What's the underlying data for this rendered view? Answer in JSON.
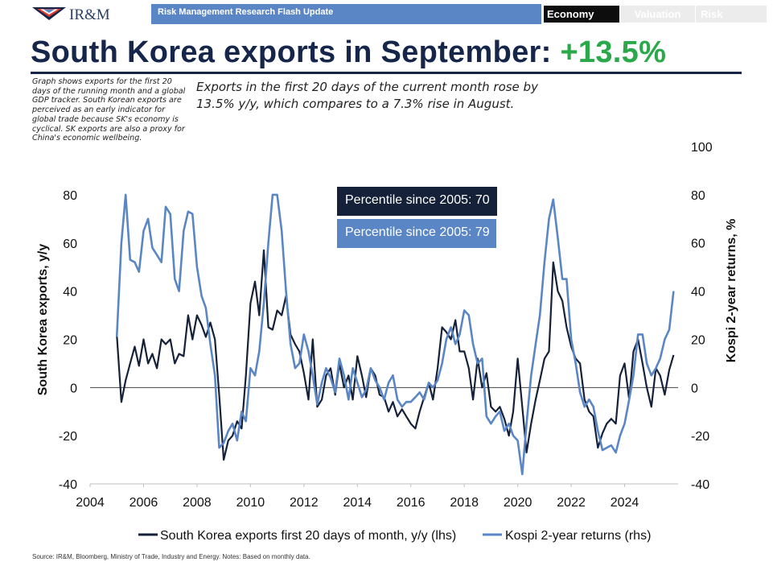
{
  "header": {
    "logo_text": "IR&M",
    "bar_title": "Risk Management Research Flash Update",
    "tabs": [
      {
        "label": "Economy",
        "active": true
      },
      {
        "label": "Valuation",
        "active": false
      },
      {
        "label": "Risk",
        "active": false
      }
    ]
  },
  "title": {
    "text": "South Korea exports in September: ",
    "value": "+13.5%",
    "value_color": "#2aa84a"
  },
  "side_note": "Graph shows exports for the first 20 days of the running month and a global GDP tracker. South Korean exports are perceived as an early indicator for global trade because SK's economy is cyclical. SK exports are also a proxy for China's economic wellbeing.",
  "callout": "Exports in the first 20 days of the current month rose by 13.5% y/y, which compares to a 7.3% rise in August.",
  "percentile_boxes": [
    {
      "text": "Percentile since 2005: 70",
      "color": "#142139"
    },
    {
      "text": "Percentile since 2005: 79",
      "color": "#5b86c6"
    }
  ],
  "source": "Source: IR&M, Bloomberg, Ministry of Trade, Industry and Energy. Notes: Based on monthly data.",
  "chart_data": {
    "type": "line",
    "title": "South Korea exports in September: +13.5%",
    "xlabel": "",
    "ylabel_left": "South Korea exports, y/y",
    "ylabel_right": "Kospi 2-year returns, %",
    "xlim": [
      2004,
      2026
    ],
    "ylim_left": [
      -40,
      80
    ],
    "ylim_right": [
      -40,
      100
    ],
    "x_ticks": [
      "2004",
      "2006",
      "2008",
      "2010",
      "2012",
      "2014",
      "2016",
      "2018",
      "2020",
      "2022",
      "2024"
    ],
    "y_ticks_left": [
      "80",
      "60",
      "40",
      "20",
      "0",
      "-20",
      "-40"
    ],
    "y_ticks_right": [
      "100",
      "80",
      "60",
      "40",
      "20",
      "0",
      "-20",
      "-40"
    ],
    "legend_position": "bottom-center",
    "series": [
      {
        "name": "South Korea exports first 20 days of month, y/y (lhs)",
        "axis": "left",
        "color": "#142139",
        "points": [
          [
            2005.0,
            22
          ],
          [
            2005.17,
            -6
          ],
          [
            2005.33,
            3
          ],
          [
            2005.5,
            10
          ],
          [
            2005.67,
            17
          ],
          [
            2005.83,
            9
          ],
          [
            2006.0,
            20
          ],
          [
            2006.17,
            10
          ],
          [
            2006.33,
            14
          ],
          [
            2006.5,
            8
          ],
          [
            2006.67,
            20
          ],
          [
            2006.83,
            18
          ],
          [
            2007.0,
            20
          ],
          [
            2007.17,
            10
          ],
          [
            2007.33,
            14
          ],
          [
            2007.5,
            13
          ],
          [
            2007.67,
            30
          ],
          [
            2007.83,
            20
          ],
          [
            2008.0,
            30
          ],
          [
            2008.17,
            26
          ],
          [
            2008.33,
            21
          ],
          [
            2008.5,
            27
          ],
          [
            2008.67,
            20
          ],
          [
            2008.83,
            -3
          ],
          [
            2009.0,
            -30
          ],
          [
            2009.17,
            -22
          ],
          [
            2009.33,
            -20
          ],
          [
            2009.5,
            -14
          ],
          [
            2009.67,
            -17
          ],
          [
            2009.83,
            5
          ],
          [
            2010.0,
            35
          ],
          [
            2010.17,
            44
          ],
          [
            2010.33,
            30
          ],
          [
            2010.5,
            57
          ],
          [
            2010.67,
            25
          ],
          [
            2010.83,
            24
          ],
          [
            2011.0,
            32
          ],
          [
            2011.17,
            30
          ],
          [
            2011.33,
            38
          ],
          [
            2011.5,
            22
          ],
          [
            2011.67,
            18
          ],
          [
            2011.83,
            15
          ],
          [
            2012.0,
            6
          ],
          [
            2012.17,
            -5
          ],
          [
            2012.33,
            20
          ],
          [
            2012.5,
            -8
          ],
          [
            2012.67,
            -5
          ],
          [
            2012.83,
            5
          ],
          [
            2013.0,
            8
          ],
          [
            2013.17,
            -3
          ],
          [
            2013.33,
            10
          ],
          [
            2013.5,
            0
          ],
          [
            2013.67,
            5
          ],
          [
            2013.83,
            -5
          ],
          [
            2014.0,
            13
          ],
          [
            2014.17,
            5
          ],
          [
            2014.33,
            -4
          ],
          [
            2014.5,
            8
          ],
          [
            2014.67,
            5
          ],
          [
            2014.83,
            -3
          ],
          [
            2015.0,
            -4
          ],
          [
            2015.17,
            -10
          ],
          [
            2015.33,
            -6
          ],
          [
            2015.5,
            -12
          ],
          [
            2015.67,
            -9
          ],
          [
            2015.83,
            -12
          ],
          [
            2016.0,
            -15
          ],
          [
            2016.17,
            -17
          ],
          [
            2016.33,
            -10
          ],
          [
            2016.5,
            -4
          ],
          [
            2016.67,
            2
          ],
          [
            2016.83,
            -5
          ],
          [
            2017.0,
            8
          ],
          [
            2017.17,
            25
          ],
          [
            2017.33,
            23
          ],
          [
            2017.5,
            20
          ],
          [
            2017.67,
            28
          ],
          [
            2017.83,
            15
          ],
          [
            2018.0,
            15
          ],
          [
            2018.17,
            8
          ],
          [
            2018.33,
            -5
          ],
          [
            2018.5,
            12
          ],
          [
            2018.67,
            0
          ],
          [
            2018.83,
            6
          ],
          [
            2019.0,
            -8
          ],
          [
            2019.17,
            -10
          ],
          [
            2019.33,
            -8
          ],
          [
            2019.5,
            -13
          ],
          [
            2019.67,
            -20
          ],
          [
            2019.83,
            -10
          ],
          [
            2020.0,
            12
          ],
          [
            2020.17,
            -8
          ],
          [
            2020.33,
            -27
          ],
          [
            2020.5,
            -15
          ],
          [
            2020.67,
            -5
          ],
          [
            2020.83,
            3
          ],
          [
            2021.0,
            12
          ],
          [
            2021.17,
            15
          ],
          [
            2021.33,
            52
          ],
          [
            2021.5,
            40
          ],
          [
            2021.67,
            36
          ],
          [
            2021.83,
            25
          ],
          [
            2022.0,
            17
          ],
          [
            2022.17,
            12
          ],
          [
            2022.33,
            10
          ],
          [
            2022.5,
            -5
          ],
          [
            2022.67,
            -10
          ],
          [
            2022.83,
            -12
          ],
          [
            2023.0,
            -25
          ],
          [
            2023.17,
            -19
          ],
          [
            2023.33,
            -15
          ],
          [
            2023.5,
            -13
          ],
          [
            2023.67,
            -15
          ],
          [
            2023.83,
            5
          ],
          [
            2024.0,
            10
          ],
          [
            2024.17,
            -5
          ],
          [
            2024.33,
            15
          ],
          [
            2024.5,
            20
          ],
          [
            2024.67,
            10
          ],
          [
            2024.83,
            0
          ],
          [
            2025.0,
            -8
          ],
          [
            2025.17,
            8
          ],
          [
            2025.33,
            5
          ],
          [
            2025.5,
            -3
          ],
          [
            2025.67,
            7.3
          ],
          [
            2025.83,
            13.5
          ]
        ]
      },
      {
        "name": "Kospi 2-year returns (rhs)",
        "axis": "right",
        "color": "#5b86c6",
        "points": [
          [
            2005.0,
            21
          ],
          [
            2005.17,
            60
          ],
          [
            2005.33,
            80
          ],
          [
            2005.5,
            53
          ],
          [
            2005.67,
            52
          ],
          [
            2005.83,
            48
          ],
          [
            2006.0,
            65
          ],
          [
            2006.17,
            70
          ],
          [
            2006.33,
            58
          ],
          [
            2006.5,
            55
          ],
          [
            2006.67,
            52
          ],
          [
            2006.83,
            75
          ],
          [
            2007.0,
            72
          ],
          [
            2007.17,
            45
          ],
          [
            2007.33,
            40
          ],
          [
            2007.5,
            65
          ],
          [
            2007.67,
            73
          ],
          [
            2007.83,
            72
          ],
          [
            2008.0,
            50
          ],
          [
            2008.17,
            38
          ],
          [
            2008.33,
            33
          ],
          [
            2008.5,
            18
          ],
          [
            2008.67,
            5
          ],
          [
            2008.83,
            -25
          ],
          [
            2009.0,
            -23
          ],
          [
            2009.17,
            -18
          ],
          [
            2009.33,
            -15
          ],
          [
            2009.5,
            -22
          ],
          [
            2009.67,
            -10
          ],
          [
            2009.83,
            -14
          ],
          [
            2010.0,
            8
          ],
          [
            2010.17,
            5
          ],
          [
            2010.33,
            15
          ],
          [
            2010.5,
            35
          ],
          [
            2010.67,
            60
          ],
          [
            2010.83,
            80
          ],
          [
            2011.0,
            80
          ],
          [
            2011.17,
            65
          ],
          [
            2011.33,
            40
          ],
          [
            2011.5,
            18
          ],
          [
            2011.67,
            8
          ],
          [
            2011.83,
            10
          ],
          [
            2012.0,
            22
          ],
          [
            2012.17,
            15
          ],
          [
            2012.33,
            5
          ],
          [
            2012.5,
            -7
          ],
          [
            2012.67,
            2
          ],
          [
            2012.83,
            8
          ],
          [
            2013.0,
            4
          ],
          [
            2013.17,
            -2
          ],
          [
            2013.33,
            12
          ],
          [
            2013.5,
            5
          ],
          [
            2013.67,
            -5
          ],
          [
            2013.83,
            8
          ],
          [
            2014.0,
            2
          ],
          [
            2014.17,
            -4
          ],
          [
            2014.33,
            -1
          ],
          [
            2014.5,
            8
          ],
          [
            2014.67,
            3
          ],
          [
            2014.83,
            0
          ],
          [
            2015.0,
            -5
          ],
          [
            2015.17,
            2
          ],
          [
            2015.33,
            5
          ],
          [
            2015.5,
            -5
          ],
          [
            2015.67,
            -8
          ],
          [
            2015.83,
            -6
          ],
          [
            2016.0,
            -6
          ],
          [
            2016.17,
            -4
          ],
          [
            2016.33,
            -2
          ],
          [
            2016.5,
            -5
          ],
          [
            2016.67,
            2
          ],
          [
            2016.83,
            0
          ],
          [
            2017.0,
            3
          ],
          [
            2017.17,
            10
          ],
          [
            2017.33,
            20
          ],
          [
            2017.5,
            25
          ],
          [
            2017.67,
            18
          ],
          [
            2017.83,
            22
          ],
          [
            2018.0,
            32
          ],
          [
            2018.17,
            30
          ],
          [
            2018.33,
            18
          ],
          [
            2018.5,
            10
          ],
          [
            2018.67,
            12
          ],
          [
            2018.83,
            -12
          ],
          [
            2019.0,
            -15
          ],
          [
            2019.17,
            -12
          ],
          [
            2019.33,
            -10
          ],
          [
            2019.5,
            -18
          ],
          [
            2019.67,
            -15
          ],
          [
            2019.83,
            -20
          ],
          [
            2020.0,
            -22
          ],
          [
            2020.17,
            -36
          ],
          [
            2020.33,
            -15
          ],
          [
            2020.5,
            5
          ],
          [
            2020.67,
            18
          ],
          [
            2020.83,
            30
          ],
          [
            2021.0,
            52
          ],
          [
            2021.17,
            70
          ],
          [
            2021.33,
            78
          ],
          [
            2021.5,
            62
          ],
          [
            2021.67,
            45
          ],
          [
            2021.83,
            45
          ],
          [
            2022.0,
            20
          ],
          [
            2022.17,
            10
          ],
          [
            2022.33,
            -2
          ],
          [
            2022.5,
            -8
          ],
          [
            2022.67,
            -5
          ],
          [
            2022.83,
            -8
          ],
          [
            2023.0,
            -18
          ],
          [
            2023.17,
            -26
          ],
          [
            2023.33,
            -25
          ],
          [
            2023.5,
            -24
          ],
          [
            2023.67,
            -27
          ],
          [
            2023.83,
            -20
          ],
          [
            2024.0,
            -15
          ],
          [
            2024.17,
            -5
          ],
          [
            2024.33,
            5
          ],
          [
            2024.5,
            22
          ],
          [
            2024.67,
            22
          ],
          [
            2024.83,
            10
          ],
          [
            2025.0,
            5
          ],
          [
            2025.17,
            8
          ],
          [
            2025.33,
            12
          ],
          [
            2025.5,
            20
          ],
          [
            2025.67,
            24
          ],
          [
            2025.83,
            40
          ]
        ]
      }
    ]
  }
}
